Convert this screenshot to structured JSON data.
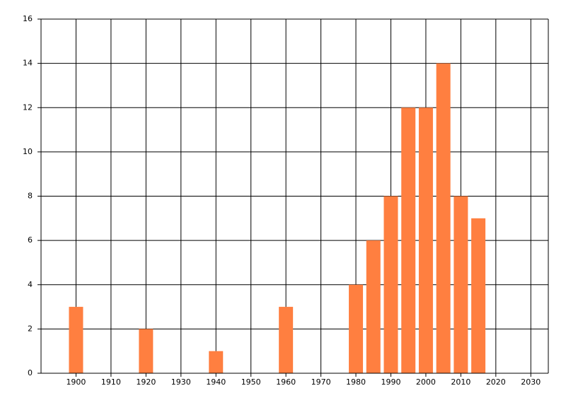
{
  "chart_data": {
    "type": "bar",
    "x": [
      1900,
      1920,
      1940,
      1960,
      1980,
      1985,
      1990,
      1995,
      2000,
      2005,
      2010,
      2015
    ],
    "values": [
      3,
      2,
      1,
      3,
      4,
      6,
      8,
      12,
      12,
      14,
      8,
      7
    ],
    "color": "#ff7f40",
    "xlim": [
      1890,
      2035
    ],
    "xticks": [
      1900,
      1910,
      1920,
      1930,
      1940,
      1950,
      1960,
      1970,
      1980,
      1990,
      2000,
      2010,
      2020,
      2030
    ],
    "ylim": [
      0,
      16
    ],
    "yticks": [
      0,
      2,
      4,
      6,
      8,
      10,
      12,
      14,
      16
    ],
    "grid": true
  }
}
